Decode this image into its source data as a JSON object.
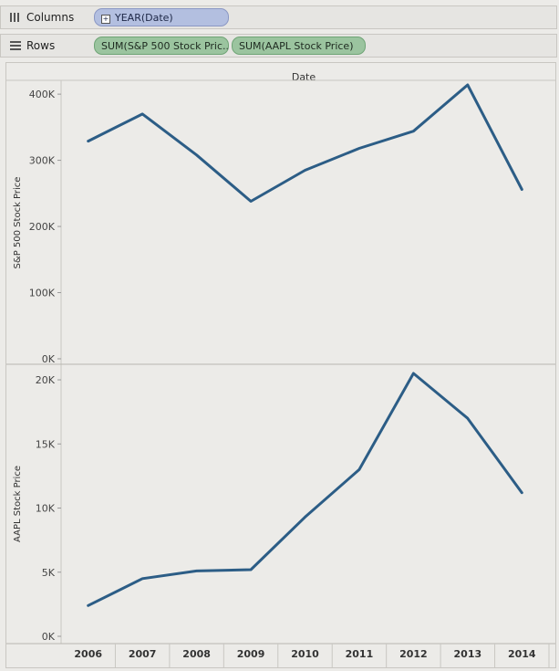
{
  "shelves": {
    "columns": {
      "label": "Columns",
      "pills": [
        "YEAR(Date)"
      ]
    },
    "rows": {
      "label": "Rows",
      "pills": [
        "SUM(S&P 500 Stock Pric..",
        "SUM(AAPL Stock Price)"
      ]
    }
  },
  "colors": {
    "line": "#2c5d86",
    "columns_pill": "#b3bfe0",
    "rows_pill": "#9bc49f",
    "background": "#ecebe8"
  },
  "icons": {
    "columns": "columns-grid-icon",
    "rows": "rows-grid-icon",
    "pill_expand": "plus-box-icon"
  },
  "chart_data": {
    "type": "line",
    "header": "Date",
    "categories": [
      "2006",
      "2007",
      "2008",
      "2009",
      "2010",
      "2011",
      "2012",
      "2013",
      "2014"
    ],
    "panels": [
      {
        "ylabel": "S&P 500 Stock Price",
        "ylim": [
          0,
          425000
        ],
        "ticks": [
          0,
          100000,
          200000,
          300000,
          400000
        ],
        "tick_labels": [
          "0K",
          "100K",
          "200K",
          "300K",
          "400K"
        ],
        "values": [
          329000,
          370000,
          308000,
          238000,
          285000,
          318000,
          344000,
          414000,
          256000
        ]
      },
      {
        "ylabel": "AAPL Stock Price",
        "ylim": [
          0,
          21000
        ],
        "ticks": [
          0,
          5000,
          10000,
          15000,
          20000
        ],
        "tick_labels": [
          "0K",
          "5K",
          "10K",
          "15K",
          "20K"
        ],
        "values": [
          2400,
          4500,
          5100,
          5200,
          9300,
          13000,
          20500,
          17000,
          11200
        ]
      }
    ],
    "grid": false,
    "legend": "none"
  }
}
